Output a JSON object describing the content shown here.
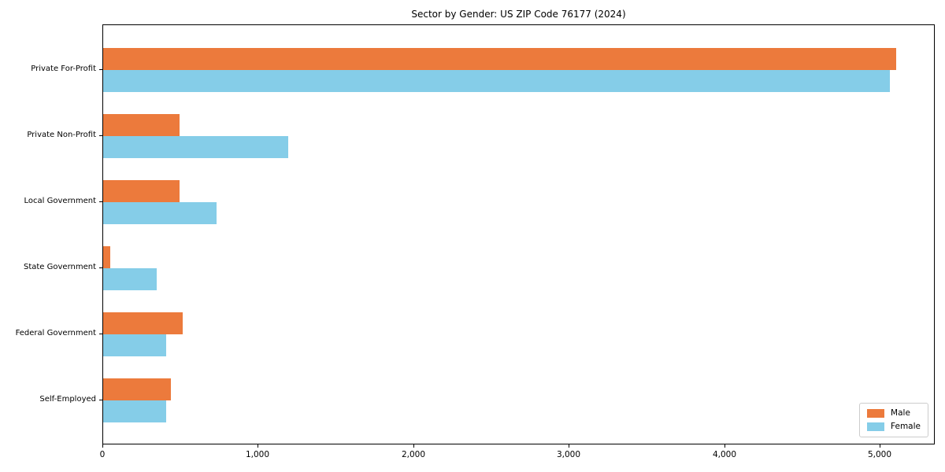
{
  "figure": {
    "background": "#ffffff"
  },
  "chart_data": {
    "type": "bar",
    "orientation": "horizontal",
    "title": "Sector by Gender: US ZIP Code 76177 (2024)",
    "xlabel": "",
    "ylabel": "",
    "categories": [
      "Private For-Profit",
      "Private Non-Profit",
      "Local Government",
      "State Government",
      "Federal Government",
      "Self-Employed"
    ],
    "series": [
      {
        "name": "Male",
        "color": "#EC7A3C",
        "values": [
          5100,
          490,
          490,
          45,
          510,
          435
        ]
      },
      {
        "name": "Female",
        "color": "#85CDE8",
        "values": [
          5060,
          1190,
          730,
          345,
          405,
          405
        ]
      }
    ],
    "xlim": [
      0,
      5355
    ],
    "x_ticks": [
      {
        "value": 0,
        "label": "0"
      },
      {
        "value": 1000,
        "label": "1,000"
      },
      {
        "value": 2000,
        "label": "2,000"
      },
      {
        "value": 3000,
        "label": "3,000"
      },
      {
        "value": 4000,
        "label": "4,000"
      },
      {
        "value": 5000,
        "label": "5,000"
      }
    ],
    "grid": false,
    "legend_position": "lower-right",
    "axis_color": "#000000"
  }
}
